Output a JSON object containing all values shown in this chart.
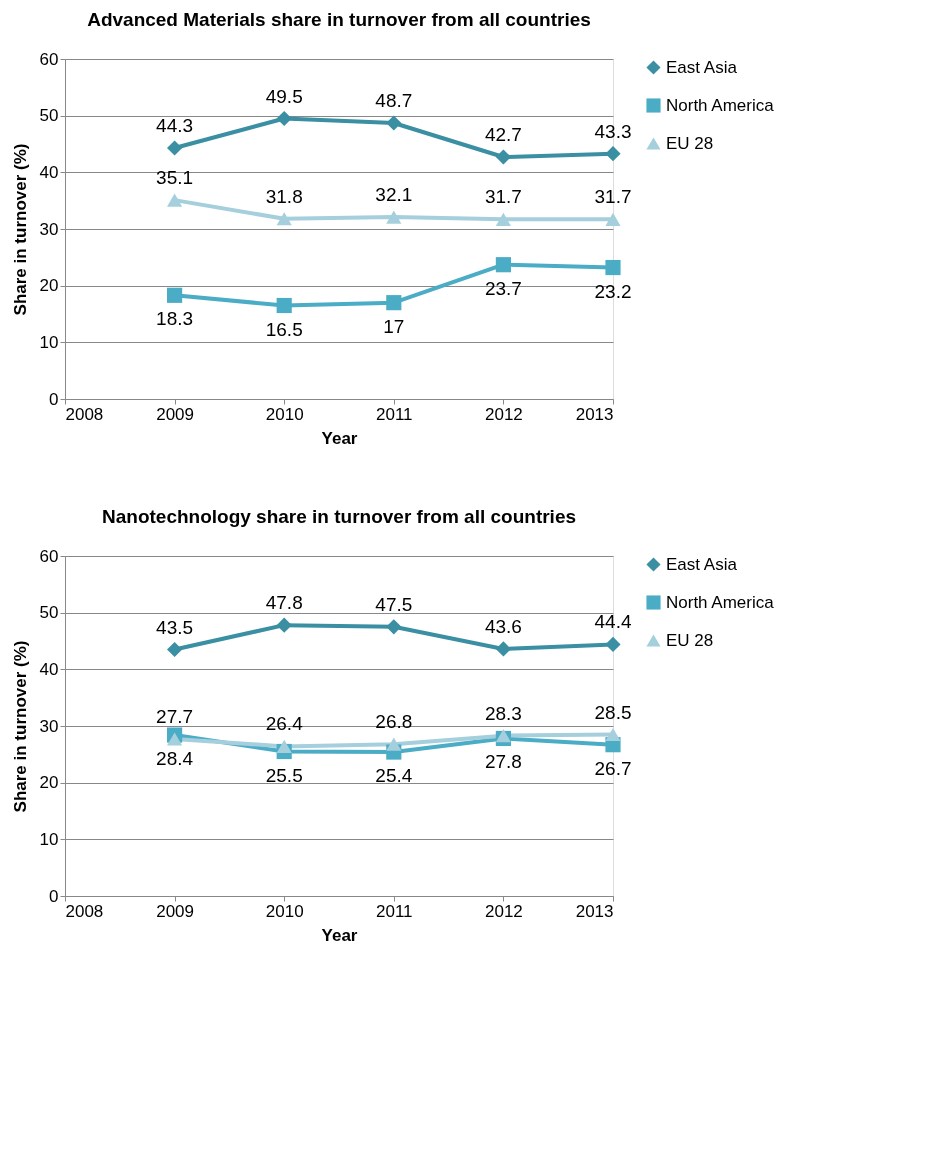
{
  "chart_data": [
    {
      "type": "line",
      "title": "Advanced Materials share in turnover from all countries",
      "xlabel": "Year",
      "ylabel": "Share in turnover (%)",
      "x": [
        2009,
        2010,
        2011,
        2012,
        2013
      ],
      "xlim": [
        2008,
        2013
      ],
      "xticks": [
        2008,
        2009,
        2010,
        2011,
        2012,
        2013
      ],
      "ylim": [
        0,
        60
      ],
      "yticks": [
        0,
        10,
        20,
        30,
        40,
        50,
        60
      ],
      "grid": "y",
      "legend": "right",
      "data_labels": true,
      "series": [
        {
          "name": "East Asia",
          "color": "#3a8fa3",
          "marker": "diamond",
          "values": [
            44.3,
            49.5,
            48.7,
            42.7,
            43.3
          ]
        },
        {
          "name": "North America",
          "color": "#4bacc6",
          "marker": "square",
          "values": [
            18.3,
            16.5,
            17,
            23.7,
            23.2
          ]
        },
        {
          "name": "EU 28",
          "color": "#a5cfdc",
          "marker": "triangle",
          "values": [
            35.1,
            31.8,
            32.1,
            31.7,
            31.7
          ]
        }
      ]
    },
    {
      "type": "line",
      "title": "Nanotechnology share in turnover from all countries",
      "xlabel": "Year",
      "ylabel": "Share in turnover (%)",
      "x": [
        2009,
        2010,
        2011,
        2012,
        2013
      ],
      "xlim": [
        2008,
        2013
      ],
      "xticks": [
        2008,
        2009,
        2010,
        2011,
        2012,
        2013
      ],
      "ylim": [
        0,
        60
      ],
      "yticks": [
        0,
        10,
        20,
        30,
        40,
        50,
        60
      ],
      "grid": "y",
      "legend": "right",
      "data_labels": true,
      "series": [
        {
          "name": "East Asia",
          "color": "#3a8fa3",
          "marker": "diamond",
          "values": [
            43.5,
            47.8,
            47.5,
            43.6,
            44.4
          ]
        },
        {
          "name": "North America",
          "color": "#4bacc6",
          "marker": "square",
          "values": [
            28.4,
            25.5,
            25.4,
            27.8,
            26.7
          ]
        },
        {
          "name": "EU 28",
          "color": "#a5cfdc",
          "marker": "triangle",
          "values": [
            27.7,
            26.4,
            26.8,
            28.3,
            28.5
          ]
        }
      ]
    }
  ]
}
